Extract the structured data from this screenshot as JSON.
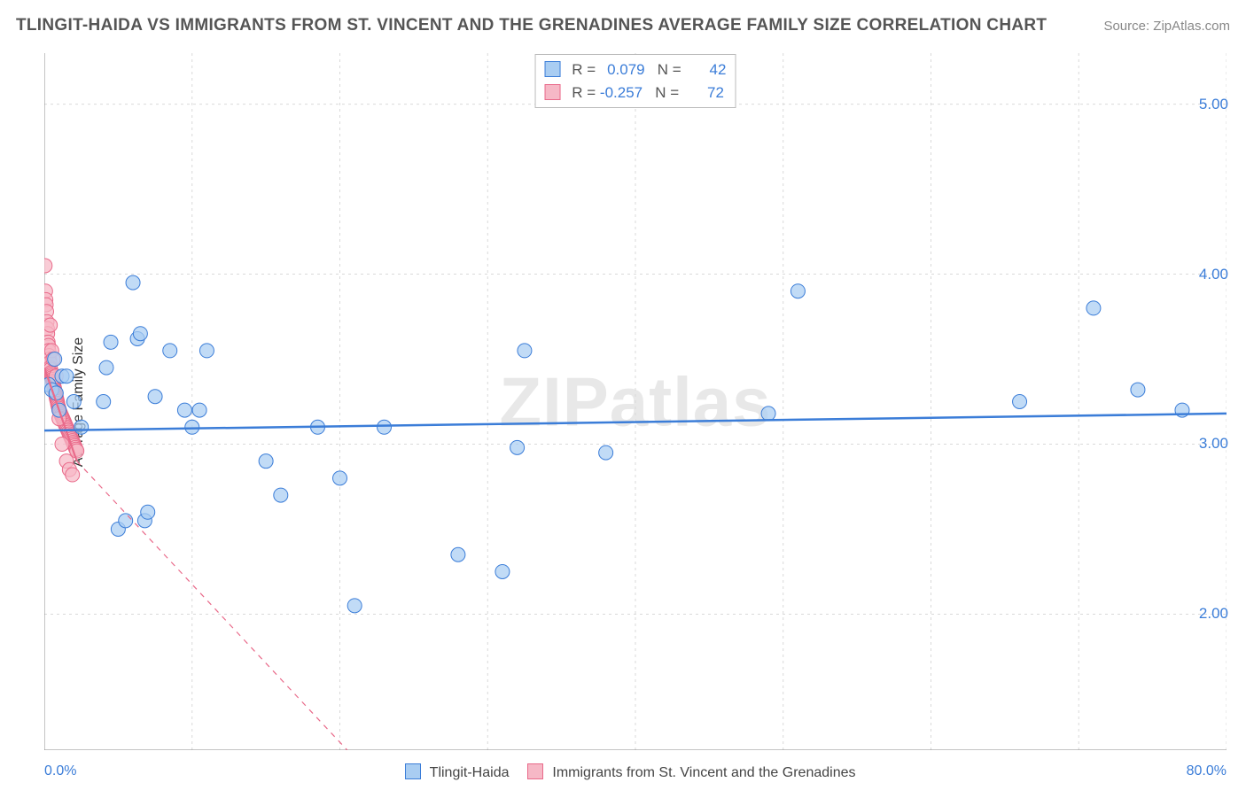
{
  "title": "TLINGIT-HAIDA VS IMMIGRANTS FROM ST. VINCENT AND THE GRENADINES AVERAGE FAMILY SIZE CORRELATION CHART",
  "source": "Source: ZipAtlas.com",
  "watermark": "ZIPatlas",
  "ylabel": "Average Family Size",
  "chart": {
    "type": "scatter",
    "background_color": "#ffffff",
    "grid_color": "#d9d9d9",
    "axis_color": "#888888",
    "xlim": [
      0,
      80
    ],
    "ylim": [
      1.2,
      5.3
    ],
    "xgridlines": [
      0,
      10,
      20,
      30,
      40,
      50,
      60,
      70,
      80
    ],
    "ygridlines": [
      2.0,
      3.0,
      4.0,
      5.0
    ],
    "xaxis_min_label": "0.0%",
    "xaxis_max_label": "80.0%",
    "yticklabels": [
      "2.00",
      "3.00",
      "4.00",
      "5.00"
    ],
    "series": [
      {
        "name": "Tlingit-Haida",
        "label": "Tlingit-Haida",
        "fill": "#a9cdf2",
        "stroke": "#3b7dd8",
        "marker_radius": 8,
        "R": "0.079",
        "N": "42",
        "trend": {
          "x1": 0,
          "y1": 3.08,
          "x2": 80,
          "y2": 3.18,
          "dash": false
        },
        "points": [
          {
            "x": 0.3,
            "y": 3.35
          },
          {
            "x": 0.5,
            "y": 3.32
          },
          {
            "x": 0.7,
            "y": 3.5
          },
          {
            "x": 0.8,
            "y": 3.3
          },
          {
            "x": 1.0,
            "y": 3.2
          },
          {
            "x": 1.2,
            "y": 3.4
          },
          {
            "x": 1.5,
            "y": 3.4
          },
          {
            "x": 2.0,
            "y": 3.25
          },
          {
            "x": 2.5,
            "y": 3.1
          },
          {
            "x": 4.0,
            "y": 3.25
          },
          {
            "x": 4.2,
            "y": 3.45
          },
          {
            "x": 4.5,
            "y": 3.6
          },
          {
            "x": 5.0,
            "y": 2.5
          },
          {
            "x": 5.5,
            "y": 2.55
          },
          {
            "x": 6.0,
            "y": 3.95
          },
          {
            "x": 6.3,
            "y": 3.62
          },
          {
            "x": 6.5,
            "y": 3.65
          },
          {
            "x": 6.8,
            "y": 2.55
          },
          {
            "x": 7.0,
            "y": 2.6
          },
          {
            "x": 7.5,
            "y": 3.28
          },
          {
            "x": 8.5,
            "y": 3.55
          },
          {
            "x": 9.5,
            "y": 3.2
          },
          {
            "x": 10.0,
            "y": 3.1
          },
          {
            "x": 10.5,
            "y": 3.2
          },
          {
            "x": 11.0,
            "y": 3.55
          },
          {
            "x": 15.0,
            "y": 2.9
          },
          {
            "x": 16.0,
            "y": 2.7
          },
          {
            "x": 18.5,
            "y": 3.1
          },
          {
            "x": 20.0,
            "y": 2.8
          },
          {
            "x": 21.0,
            "y": 2.05
          },
          {
            "x": 23.0,
            "y": 3.1
          },
          {
            "x": 28.0,
            "y": 2.35
          },
          {
            "x": 31.0,
            "y": 2.25
          },
          {
            "x": 32.0,
            "y": 2.98
          },
          {
            "x": 32.5,
            "y": 3.55
          },
          {
            "x": 38.0,
            "y": 2.95
          },
          {
            "x": 49.0,
            "y": 3.18
          },
          {
            "x": 51.0,
            "y": 3.9
          },
          {
            "x": 66.0,
            "y": 3.25
          },
          {
            "x": 71.0,
            "y": 3.8
          },
          {
            "x": 74.0,
            "y": 3.32
          },
          {
            "x": 77.0,
            "y": 3.2
          }
        ]
      },
      {
        "name": "Immigrants from St. Vincent and the Grenadines",
        "label": "Immigrants from St. Vincent and the Grenadines",
        "fill": "#f6b8c6",
        "stroke": "#e96a8a",
        "marker_radius": 8,
        "R": "-0.257",
        "N": "72",
        "trend": {
          "x1": 0,
          "y1": 3.45,
          "x2": 2.2,
          "y2": 2.9,
          "dash": false
        },
        "trend_ext": {
          "x1": 2.2,
          "y1": 2.9,
          "x2": 20.5,
          "y2": 1.2,
          "dash": true
        },
        "points": [
          {
            "x": 0.05,
            "y": 4.05
          },
          {
            "x": 0.08,
            "y": 3.9
          },
          {
            "x": 0.1,
            "y": 3.85
          },
          {
            "x": 0.12,
            "y": 3.82
          },
          {
            "x": 0.15,
            "y": 3.78
          },
          {
            "x": 0.18,
            "y": 3.72
          },
          {
            "x": 0.2,
            "y": 3.68
          },
          {
            "x": 0.22,
            "y": 3.65
          },
          {
            "x": 0.25,
            "y": 3.6
          },
          {
            "x": 0.28,
            "y": 3.58
          },
          {
            "x": 0.3,
            "y": 3.55
          },
          {
            "x": 0.32,
            "y": 3.52
          },
          {
            "x": 0.35,
            "y": 3.5
          },
          {
            "x": 0.38,
            "y": 3.48
          },
          {
            "x": 0.4,
            "y": 3.45
          },
          {
            "x": 0.42,
            "y": 3.44
          },
          {
            "x": 0.45,
            "y": 3.42
          },
          {
            "x": 0.48,
            "y": 3.41
          },
          {
            "x": 0.5,
            "y": 3.4
          },
          {
            "x": 0.52,
            "y": 3.39
          },
          {
            "x": 0.55,
            "y": 3.38
          },
          {
            "x": 0.58,
            "y": 3.37
          },
          {
            "x": 0.6,
            "y": 3.36
          },
          {
            "x": 0.62,
            "y": 3.35
          },
          {
            "x": 0.65,
            "y": 3.34
          },
          {
            "x": 0.68,
            "y": 3.33
          },
          {
            "x": 0.7,
            "y": 3.32
          },
          {
            "x": 0.72,
            "y": 3.31
          },
          {
            "x": 0.75,
            "y": 3.3
          },
          {
            "x": 0.78,
            "y": 3.29
          },
          {
            "x": 0.8,
            "y": 3.28
          },
          {
            "x": 0.82,
            "y": 3.27
          },
          {
            "x": 0.85,
            "y": 3.26
          },
          {
            "x": 0.88,
            "y": 3.25
          },
          {
            "x": 0.9,
            "y": 3.24
          },
          {
            "x": 0.92,
            "y": 3.23
          },
          {
            "x": 0.95,
            "y": 3.22
          },
          {
            "x": 0.98,
            "y": 3.21
          },
          {
            "x": 1.0,
            "y": 3.2
          },
          {
            "x": 1.05,
            "y": 3.19
          },
          {
            "x": 1.1,
            "y": 3.18
          },
          {
            "x": 1.15,
            "y": 3.17
          },
          {
            "x": 1.2,
            "y": 3.16
          },
          {
            "x": 1.25,
            "y": 3.15
          },
          {
            "x": 1.3,
            "y": 3.14
          },
          {
            "x": 1.35,
            "y": 3.13
          },
          {
            "x": 1.4,
            "y": 3.12
          },
          {
            "x": 1.45,
            "y": 3.11
          },
          {
            "x": 1.5,
            "y": 3.1
          },
          {
            "x": 1.55,
            "y": 3.09
          },
          {
            "x": 1.6,
            "y": 3.08
          },
          {
            "x": 1.65,
            "y": 3.07
          },
          {
            "x": 1.7,
            "y": 3.06
          },
          {
            "x": 1.75,
            "y": 3.05
          },
          {
            "x": 1.8,
            "y": 3.04
          },
          {
            "x": 1.85,
            "y": 3.03
          },
          {
            "x": 1.9,
            "y": 3.02
          },
          {
            "x": 1.95,
            "y": 3.01
          },
          {
            "x": 2.0,
            "y": 3.0
          },
          {
            "x": 2.05,
            "y": 2.99
          },
          {
            "x": 2.1,
            "y": 2.98
          },
          {
            "x": 2.15,
            "y": 2.97
          },
          {
            "x": 2.2,
            "y": 2.96
          },
          {
            "x": 0.4,
            "y": 3.7
          },
          {
            "x": 0.5,
            "y": 3.55
          },
          {
            "x": 0.6,
            "y": 3.5
          },
          {
            "x": 0.8,
            "y": 3.4
          },
          {
            "x": 1.0,
            "y": 3.15
          },
          {
            "x": 1.2,
            "y": 3.0
          },
          {
            "x": 1.5,
            "y": 2.9
          },
          {
            "x": 1.7,
            "y": 2.85
          },
          {
            "x": 1.9,
            "y": 2.82
          }
        ]
      }
    ]
  },
  "legend": {
    "swatch_blue_fill": "#a9cdf2",
    "swatch_blue_stroke": "#3b7dd8",
    "swatch_pink_fill": "#f6b8c6",
    "swatch_pink_stroke": "#e96a8a"
  }
}
